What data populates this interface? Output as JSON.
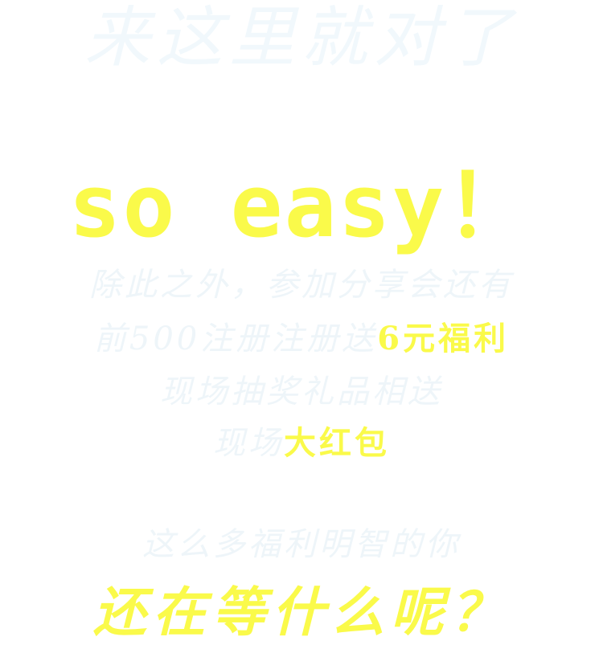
{
  "headline": "来这里就对了",
  "big_text": "so easy！",
  "lines": [
    {
      "text": "除此之外，参加分享会还有"
    },
    {
      "text": "前500注册注册送",
      "highlight": "6元福利"
    },
    {
      "text": "现场抽奖礼品相送"
    },
    {
      "text": "现场",
      "highlight": "大红包"
    },
    {
      "text": "这么多福利明智的你"
    }
  ],
  "cta": "还在等什么呢？",
  "colors": {
    "background": "#ffffff",
    "highlight": "#fafa4a",
    "faint_text": "#eef5f9"
  }
}
